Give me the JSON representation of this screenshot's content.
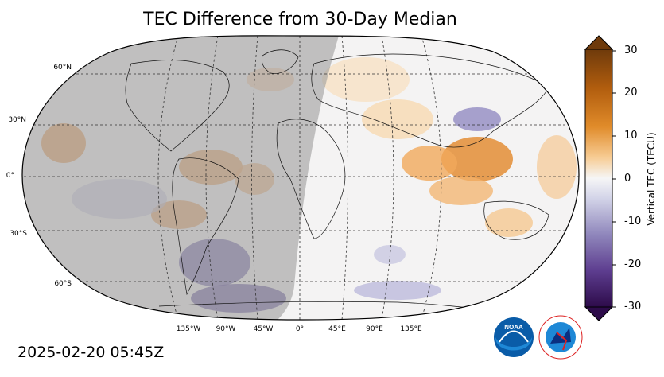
{
  "title": "TEC Difference from 30-Day Median",
  "timestamp": "2025-02-20 05:45Z",
  "colorbar": {
    "label": "Vertical TEC (TECU)",
    "ticks": [
      "30",
      "20",
      "10",
      "0",
      "-10",
      "-20",
      "-30"
    ]
  },
  "lat_labels": [
    "60°N",
    "30°N",
    "0°",
    "30°S",
    "60°S"
  ],
  "lon_labels": [
    "135°W",
    "90°W",
    "45°W",
    "0°",
    "45°E",
    "90°E",
    "135°E"
  ],
  "logos": {
    "noaa": "NOAA",
    "nws": "NATIONAL WEATHER SERVICE"
  },
  "colors": {
    "positive": "#c8740f",
    "negative": "#4b2d83",
    "neutral": "#f2f2f2",
    "night_shade": "#b4b4b4"
  }
}
